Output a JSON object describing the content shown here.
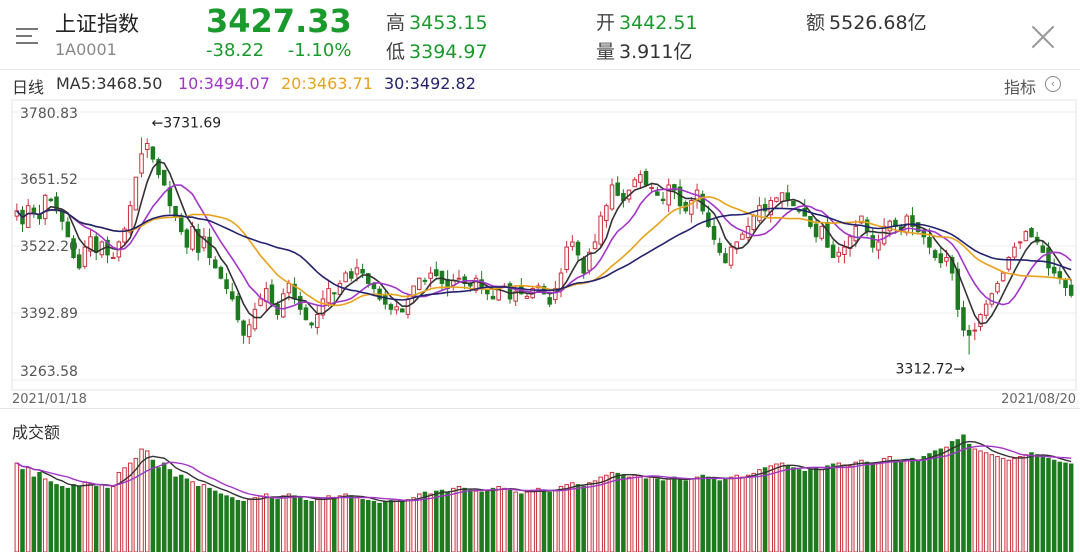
{
  "header": {
    "name": "上证指数",
    "code": "1A0001",
    "price": "3427.33",
    "change": "-38.22",
    "change_pct": "-1.10%",
    "high_label": "高",
    "high": "3453.15",
    "low_label": "低",
    "low": "3394.97",
    "open_label": "开",
    "open": "3442.51",
    "volume_label": "量",
    "volume": "3.911亿",
    "amount_label": "额",
    "amount": "5526.68亿",
    "icons": {
      "menu": "menu-icon",
      "close": "close-icon"
    }
  },
  "ma_bar": {
    "period": "日线",
    "ma5": "MA5:3468.50",
    "ma10": "10:3494.07",
    "ma20": "20:3463.71",
    "ma30": "30:3492.82",
    "indicator": "指标",
    "colors": {
      "ma5": "#333333",
      "ma10": "#a235c8",
      "ma20": "#e8a21b",
      "ma30": "#23236e"
    }
  },
  "chart_data": {
    "type": "candlestick",
    "ylim": [
      3263.58,
      3780.83
    ],
    "y_ticks": [
      "3780.83",
      "3651.52",
      "3522.20",
      "3392.89",
      "3263.58"
    ],
    "x_start": "2021/01/18",
    "x_end": "2021/08/20",
    "max_annotation": "←3731.69",
    "min_annotation": "3312.72→",
    "max_value": 3731.69,
    "min_value": 3312.72,
    "volume_title": "成交额",
    "colors": {
      "up": "#c8323c",
      "down": "#1e7a1e"
    },
    "closes": [
      3590,
      3565,
      3600,
      3585,
      3575,
      3620,
      3610,
      3590,
      3570,
      3540,
      3500,
      3480,
      3520,
      3540,
      3510,
      3530,
      3505,
      3500,
      3530,
      3555,
      3600,
      3655,
      3700,
      3720,
      3690,
      3660,
      3640,
      3600,
      3580,
      3550,
      3520,
      3560,
      3510,
      3540,
      3500,
      3480,
      3460,
      3440,
      3420,
      3380,
      3350,
      3370,
      3400,
      3420,
      3440,
      3410,
      3390,
      3430,
      3450,
      3420,
      3400,
      3380,
      3370,
      3390,
      3420,
      3440,
      3430,
      3450,
      3470,
      3460,
      3480,
      3470,
      3450,
      3440,
      3420,
      3410,
      3400,
      3405,
      3395,
      3420,
      3445,
      3460,
      3455,
      3470,
      3465,
      3450,
      3440,
      3455,
      3460,
      3450,
      3445,
      3460,
      3440,
      3430,
      3420,
      3440,
      3445,
      3420,
      3435,
      3430,
      3425,
      3440,
      3445,
      3430,
      3410,
      3440,
      3470,
      3520,
      3530,
      3505,
      3470,
      3510,
      3530,
      3580,
      3600,
      3640,
      3620,
      3610,
      3630,
      3650,
      3660,
      3640,
      3635,
      3620,
      3610,
      3640,
      3630,
      3600,
      3590,
      3610,
      3630,
      3590,
      3560,
      3535,
      3510,
      3490,
      3520,
      3530,
      3545,
      3560,
      3580,
      3600,
      3590,
      3610,
      3615,
      3625,
      3610,
      3600,
      3590,
      3580,
      3560,
      3540,
      3560,
      3520,
      3500,
      3510,
      3520,
      3540,
      3560,
      3580,
      3550,
      3520,
      3530,
      3560,
      3570,
      3560,
      3550,
      3580,
      3560,
      3550,
      3540,
      3520,
      3500,
      3490,
      3500,
      3470,
      3400,
      3360,
      3350,
      3360,
      3390,
      3410,
      3430,
      3450,
      3470,
      3500,
      3520,
      3530,
      3550,
      3540,
      3530,
      3510,
      3480,
      3470,
      3460,
      3442,
      3427
    ],
    "volumes": [
      95,
      88,
      90,
      80,
      85,
      78,
      75,
      72,
      70,
      68,
      72,
      70,
      75,
      73,
      70,
      72,
      68,
      70,
      85,
      90,
      95,
      100,
      110,
      108,
      98,
      90,
      95,
      88,
      80,
      82,
      78,
      75,
      70,
      72,
      68,
      65,
      62,
      60,
      58,
      55,
      54,
      56,
      58,
      60,
      62,
      58,
      56,
      60,
      62,
      60,
      58,
      55,
      54,
      56,
      58,
      60,
      58,
      60,
      62,
      60,
      58,
      56,
      55,
      54,
      52,
      54,
      55,
      56,
      54,
      56,
      58,
      62,
      64,
      62,
      65,
      66,
      64,
      68,
      70,
      68,
      66,
      65,
      64,
      66,
      68,
      70,
      68,
      66,
      64,
      62,
      64,
      66,
      68,
      66,
      64,
      66,
      70,
      72,
      74,
      72,
      70,
      74,
      76,
      80,
      82,
      85,
      84,
      82,
      80,
      82,
      80,
      78,
      80,
      78,
      76,
      78,
      80,
      78,
      76,
      78,
      80,
      82,
      80,
      78,
      76,
      78,
      80,
      82,
      80,
      82,
      84,
      88,
      90,
      92,
      94,
      95,
      92,
      90,
      88,
      86,
      88,
      90,
      88,
      92,
      94,
      95,
      93,
      92,
      96,
      98,
      96,
      94,
      95,
      100,
      102,
      98,
      96,
      98,
      100,
      98,
      102,
      105,
      108,
      110,
      112,
      118,
      120,
      125,
      115,
      110,
      108,
      106,
      104,
      102,
      100,
      98,
      100,
      102,
      104,
      106,
      104,
      102,
      100,
      98,
      96,
      95,
      94
    ]
  }
}
